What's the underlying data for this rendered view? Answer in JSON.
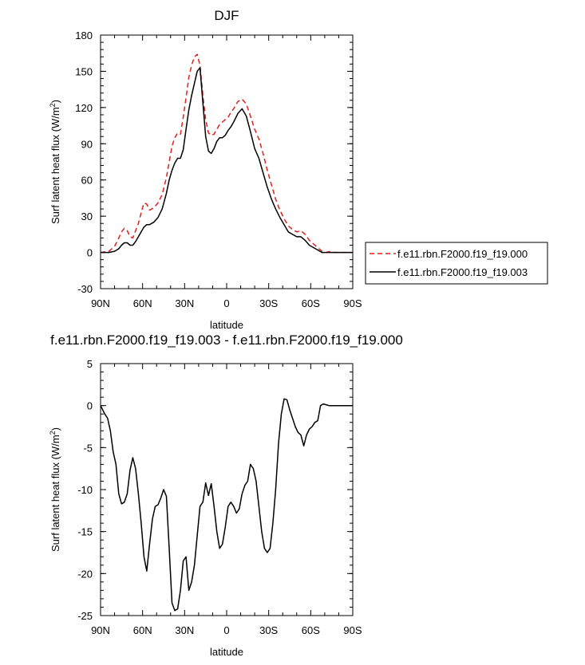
{
  "chart_data": [
    {
      "type": "line",
      "title": "DJF",
      "xlabel": "latitude",
      "ylabel": "Surf latent heat flux (W/m",
      "ylabel_sup": "2",
      "ylabel_tail": ")",
      "xlim": [
        90,
        -90
      ],
      "ylim": [
        -30,
        180
      ],
      "x_ticks": [
        90,
        60,
        30,
        0,
        -30,
        -60,
        -90
      ],
      "x_tick_labels": [
        "90N",
        "60N",
        "30N",
        "0",
        "30S",
        "60S",
        "90S"
      ],
      "y_ticks": [
        -30,
        0,
        30,
        60,
        90,
        120,
        150,
        180
      ],
      "y_tick_labels": [
        "-30",
        "0",
        "30",
        "60",
        "90",
        "120",
        "150",
        "180"
      ],
      "legend_position": "right",
      "series": [
        {
          "name": "f.e11.rbn.F2000.f19_f19.000",
          "color": "#e0201b",
          "dash": "dashed",
          "x": [
            90,
            84,
            80,
            77,
            75,
            73,
            71,
            69,
            67,
            65,
            63,
            61,
            59,
            57,
            55,
            52,
            49,
            46,
            43,
            41,
            39,
            37,
            35,
            33,
            31,
            29,
            27,
            25,
            23,
            21,
            19,
            17,
            15,
            13,
            11,
            9,
            7,
            5,
            3,
            1,
            -1,
            -3,
            -5,
            -8,
            -11,
            -14,
            -17,
            -20,
            -23,
            -26,
            -29,
            -32,
            -35,
            -38,
            -41,
            -44,
            -47,
            -50,
            -53,
            -56,
            -59,
            -62,
            -65,
            -68,
            -71,
            -74,
            -77,
            -80,
            -83,
            -86,
            -90
          ],
          "values": [
            0,
            1,
            5,
            12,
            17,
            20,
            18,
            13,
            12,
            18,
            24,
            33,
            41,
            40,
            35,
            37,
            41,
            48,
            62,
            75,
            88,
            95,
            99,
            98,
            112,
            128,
            145,
            155,
            162,
            164,
            155,
            130,
            110,
            99,
            97,
            98,
            102,
            106,
            108,
            110,
            112,
            116,
            119,
            125,
            127,
            123,
            113,
            102,
            94,
            82,
            68,
            56,
            44,
            35,
            28,
            22,
            19,
            17,
            18,
            15,
            10,
            7,
            4,
            1,
            0,
            1,
            0,
            0,
            0,
            0,
            0
          ]
        },
        {
          "name": "f.e11.rbn.F2000.f19_f19.003",
          "color": "#000000",
          "dash": "solid",
          "x": [
            90,
            84,
            80,
            77,
            75,
            73,
            71,
            69,
            67,
            65,
            63,
            61,
            59,
            57,
            55,
            52,
            49,
            46,
            43,
            41,
            39,
            37,
            35,
            33,
            31,
            29,
            27,
            25,
            23,
            21,
            19,
            17,
            15,
            13,
            11,
            9,
            7,
            5,
            3,
            1,
            -1,
            -3,
            -5,
            -8,
            -11,
            -14,
            -17,
            -20,
            -23,
            -26,
            -29,
            -32,
            -35,
            -38,
            -41,
            -44,
            -47,
            -50,
            -53,
            -56,
            -59,
            -62,
            -65,
            -68,
            -71,
            -74,
            -77,
            -80,
            -83,
            -86,
            -90
          ],
          "values": [
            0,
            0,
            1,
            3,
            6,
            8,
            8,
            6,
            6,
            9,
            13,
            17,
            21,
            23,
            23,
            25,
            29,
            36,
            49,
            60,
            68,
            74,
            78,
            78,
            85,
            102,
            118,
            130,
            140,
            150,
            153,
            124,
            96,
            84,
            82,
            86,
            92,
            95,
            95,
            97,
            101,
            104,
            108,
            115,
            119,
            113,
            100,
            86,
            78,
            66,
            54,
            44,
            36,
            29,
            23,
            17,
            15,
            13,
            13,
            10,
            6,
            4,
            2,
            0,
            0,
            0,
            0,
            0,
            0,
            0,
            0
          ]
        }
      ]
    },
    {
      "type": "line",
      "title": "f.e11.rbn.F2000.f19_f19.003 - f.e11.rbn.F2000.f19_f19.000",
      "xlabel": "latitude",
      "ylabel": "Surf latent heat flux (W/m",
      "ylabel_sup": "2",
      "ylabel_tail": ")",
      "xlim": [
        90,
        -90
      ],
      "ylim": [
        -25,
        5
      ],
      "x_ticks": [
        90,
        60,
        30,
        0,
        -30,
        -60,
        -90
      ],
      "x_tick_labels": [
        "90N",
        "60N",
        "30N",
        "0",
        "30S",
        "60S",
        "90S"
      ],
      "y_ticks": [
        -25,
        -20,
        -15,
        -10,
        -5,
        0,
        5
      ],
      "y_tick_labels": [
        "-25",
        "-20",
        "-15",
        "-10",
        "-5",
        "0",
        "5"
      ],
      "series": [
        {
          "color": "#000000",
          "dash": "solid",
          "x": [
            90,
            87,
            85,
            83,
            81,
            79,
            77,
            75,
            73,
            71,
            69,
            67,
            65,
            63,
            61,
            59,
            57,
            55,
            53,
            51,
            49,
            47,
            45,
            43,
            41,
            39,
            37,
            35,
            33,
            31,
            29,
            27,
            25,
            23,
            21,
            19,
            17,
            15,
            13,
            11,
            9,
            7,
            5,
            3,
            1,
            -1,
            -3,
            -5,
            -7,
            -9,
            -11,
            -13,
            -15,
            -17,
            -19,
            -21,
            -23,
            -25,
            -27,
            -29,
            -31,
            -33,
            -35,
            -37,
            -39,
            -41,
            -43,
            -45,
            -47,
            -49,
            -51,
            -53,
            -55,
            -57,
            -59,
            -61,
            -63,
            -65,
            -67,
            -69,
            -71,
            -73,
            -75,
            -77,
            -79,
            -81,
            -83,
            -85,
            -87,
            -90
          ],
          "values": [
            0,
            -1,
            -1.5,
            -3,
            -5.5,
            -7,
            -10.5,
            -11.7,
            -11.5,
            -10.5,
            -7.7,
            -6.2,
            -7.5,
            -10.5,
            -14,
            -18,
            -19.7,
            -16.5,
            -13.5,
            -12,
            -11.8,
            -11,
            -10,
            -10.8,
            -17,
            -23.5,
            -24.4,
            -24.2,
            -22,
            -18.5,
            -18,
            -22,
            -21,
            -19,
            -15.5,
            -12,
            -11.5,
            -9.2,
            -10.7,
            -9.3,
            -12,
            -15,
            -17,
            -16.5,
            -14.5,
            -12,
            -11.5,
            -12,
            -12.8,
            -12.3,
            -10.5,
            -9.5,
            -9,
            -7,
            -7.5,
            -9,
            -12,
            -15,
            -17,
            -17.5,
            -17,
            -14,
            -10,
            -4.5,
            -1,
            0.8,
            0.7,
            -0.5,
            -1.5,
            -2.5,
            -3.2,
            -3.5,
            -4.8,
            -3.5,
            -2.8,
            -2.5,
            -2,
            -1.8,
            0,
            0.2,
            0.1,
            0,
            0,
            0,
            0,
            0,
            0,
            0,
            0,
            0
          ]
        }
      ]
    }
  ]
}
